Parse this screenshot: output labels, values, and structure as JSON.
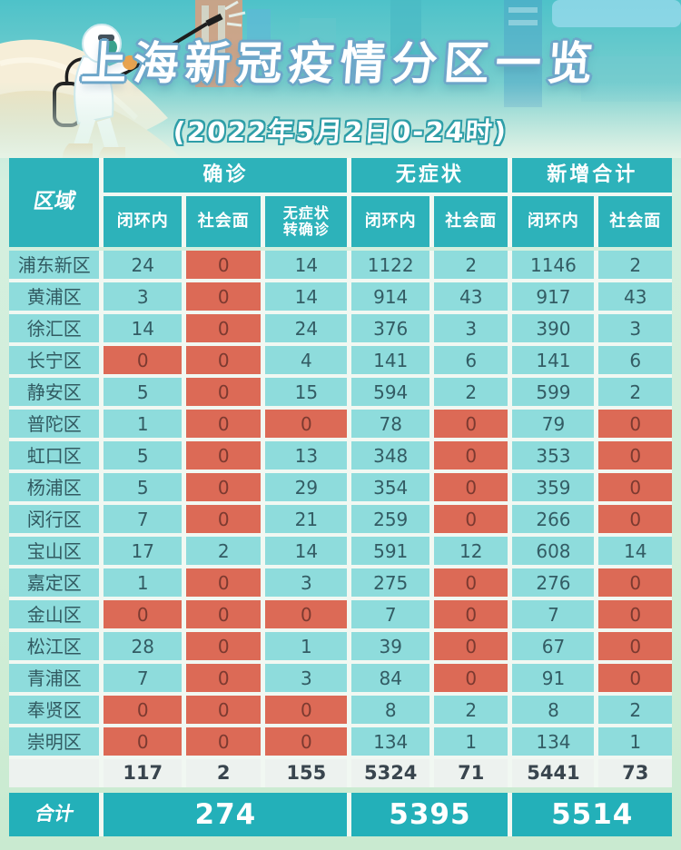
{
  "banner": {
    "title": "上海新冠疫情分区一览",
    "subtitle": "(2022年5月2日0-24时)"
  },
  "table": {
    "region_header": "区域",
    "groups": [
      {
        "label": "确诊",
        "columns": [
          "闭环内",
          "社会面",
          "无症状\n转确诊"
        ]
      },
      {
        "label": "无症状",
        "columns": [
          "闭环内",
          "社会面"
        ]
      },
      {
        "label": "新增合计",
        "columns": [
          "闭环内",
          "社会面"
        ]
      }
    ],
    "rows": [
      {
        "district": "浦东新区",
        "values": [
          "24",
          "0",
          "14",
          "1122",
          "2",
          "1146",
          "2"
        ]
      },
      {
        "district": "黄浦区",
        "values": [
          "3",
          "0",
          "14",
          "914",
          "43",
          "917",
          "43"
        ]
      },
      {
        "district": "徐汇区",
        "values": [
          "14",
          "0",
          "24",
          "376",
          "3",
          "390",
          "3"
        ]
      },
      {
        "district": "长宁区",
        "values": [
          "0",
          "0",
          "4",
          "141",
          "6",
          "141",
          "6"
        ]
      },
      {
        "district": "静安区",
        "values": [
          "5",
          "0",
          "15",
          "594",
          "2",
          "599",
          "2"
        ]
      },
      {
        "district": "普陀区",
        "values": [
          "1",
          "0",
          "0",
          "78",
          "0",
          "79",
          "0"
        ]
      },
      {
        "district": "虹口区",
        "values": [
          "5",
          "0",
          "13",
          "348",
          "0",
          "353",
          "0"
        ]
      },
      {
        "district": "杨浦区",
        "values": [
          "5",
          "0",
          "29",
          "354",
          "0",
          "359",
          "0"
        ]
      },
      {
        "district": "闵行区",
        "values": [
          "7",
          "0",
          "21",
          "259",
          "0",
          "266",
          "0"
        ]
      },
      {
        "district": "宝山区",
        "values": [
          "17",
          "2",
          "14",
          "591",
          "12",
          "608",
          "14"
        ]
      },
      {
        "district": "嘉定区",
        "values": [
          "1",
          "0",
          "3",
          "275",
          "0",
          "276",
          "0"
        ]
      },
      {
        "district": "金山区",
        "values": [
          "0",
          "0",
          "0",
          "7",
          "0",
          "7",
          "0"
        ]
      },
      {
        "district": "松江区",
        "values": [
          "28",
          "0",
          "1",
          "39",
          "0",
          "67",
          "0"
        ]
      },
      {
        "district": "青浦区",
        "values": [
          "7",
          "0",
          "3",
          "84",
          "0",
          "91",
          "0"
        ]
      },
      {
        "district": "奉贤区",
        "values": [
          "0",
          "0",
          "0",
          "8",
          "2",
          "8",
          "2"
        ]
      },
      {
        "district": "崇明区",
        "values": [
          "0",
          "0",
          "0",
          "134",
          "1",
          "134",
          "1"
        ]
      }
    ],
    "subtotal": {
      "values": [
        "117",
        "2",
        "155",
        "5324",
        "71",
        "5441",
        "73"
      ]
    },
    "total": {
      "label": "合计",
      "values": [
        "274",
        "5395",
        "5514"
      ]
    }
  },
  "colors": {
    "header_teal": "#2db2ba",
    "cell_cyan": "#8edcdc",
    "zero_red": "#dc6a56",
    "total_teal": "#23b0b9",
    "title_outline": "#6da6c9",
    "subtitle_outline": "#2f9ea8",
    "page_green": "#cfecd8"
  }
}
